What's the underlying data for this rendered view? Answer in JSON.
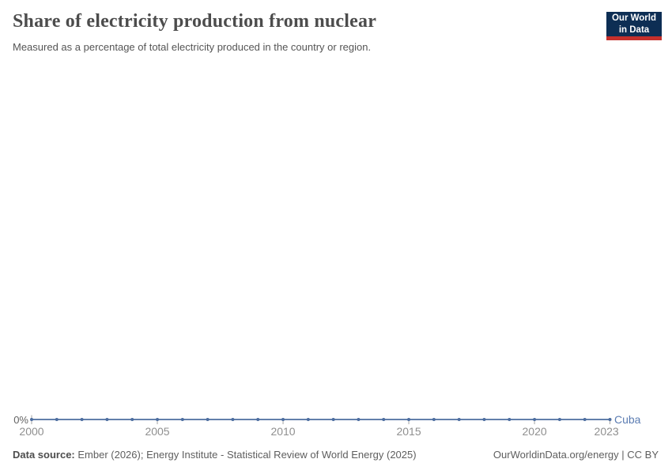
{
  "header": {
    "title": "Share of electricity production from nuclear",
    "subtitle": "Measured as a percentage of total electricity produced in the country or region.",
    "logo_line1": "Our World",
    "logo_line2": "in Data"
  },
  "chart_data": {
    "type": "line",
    "title": "Share of electricity production from nuclear",
    "entity_label": "Cuba",
    "unit": "%",
    "x": [
      2000,
      2001,
      2002,
      2003,
      2004,
      2005,
      2006,
      2007,
      2008,
      2009,
      2010,
      2011,
      2012,
      2013,
      2014,
      2015,
      2016,
      2017,
      2018,
      2019,
      2020,
      2021,
      2022,
      2023
    ],
    "series": [
      {
        "name": "Cuba",
        "values": [
          0,
          0,
          0,
          0,
          0,
          0,
          0,
          0,
          0,
          0,
          0,
          0,
          0,
          0,
          0,
          0,
          0,
          0,
          0,
          0,
          0,
          0,
          0,
          0
        ]
      }
    ],
    "x_tick_years": [
      2000,
      2005,
      2010,
      2015,
      2020,
      2023
    ],
    "y_tick_labels": [
      "0%"
    ],
    "ylabel": "",
    "xlabel": "",
    "grid": false,
    "legend_position": "end-of-line",
    "line_color": "#4c6d9f",
    "point_color": "#4c6d9f",
    "entity_label_color": "#5b7cb2",
    "tick_mark_color": "#a3a3a3"
  },
  "footer": {
    "source_label": "Data source:",
    "source_text": " Ember (2026); Energy Institute - Statistical Review of World Energy (2025)",
    "url_text": "OurWorldinData.org/energy",
    "separator": " | ",
    "license_text": "CC BY"
  },
  "colors": {
    "logo_bg": "#0d2e54",
    "logo_red": "#c5302c",
    "background": "#ffffff"
  }
}
